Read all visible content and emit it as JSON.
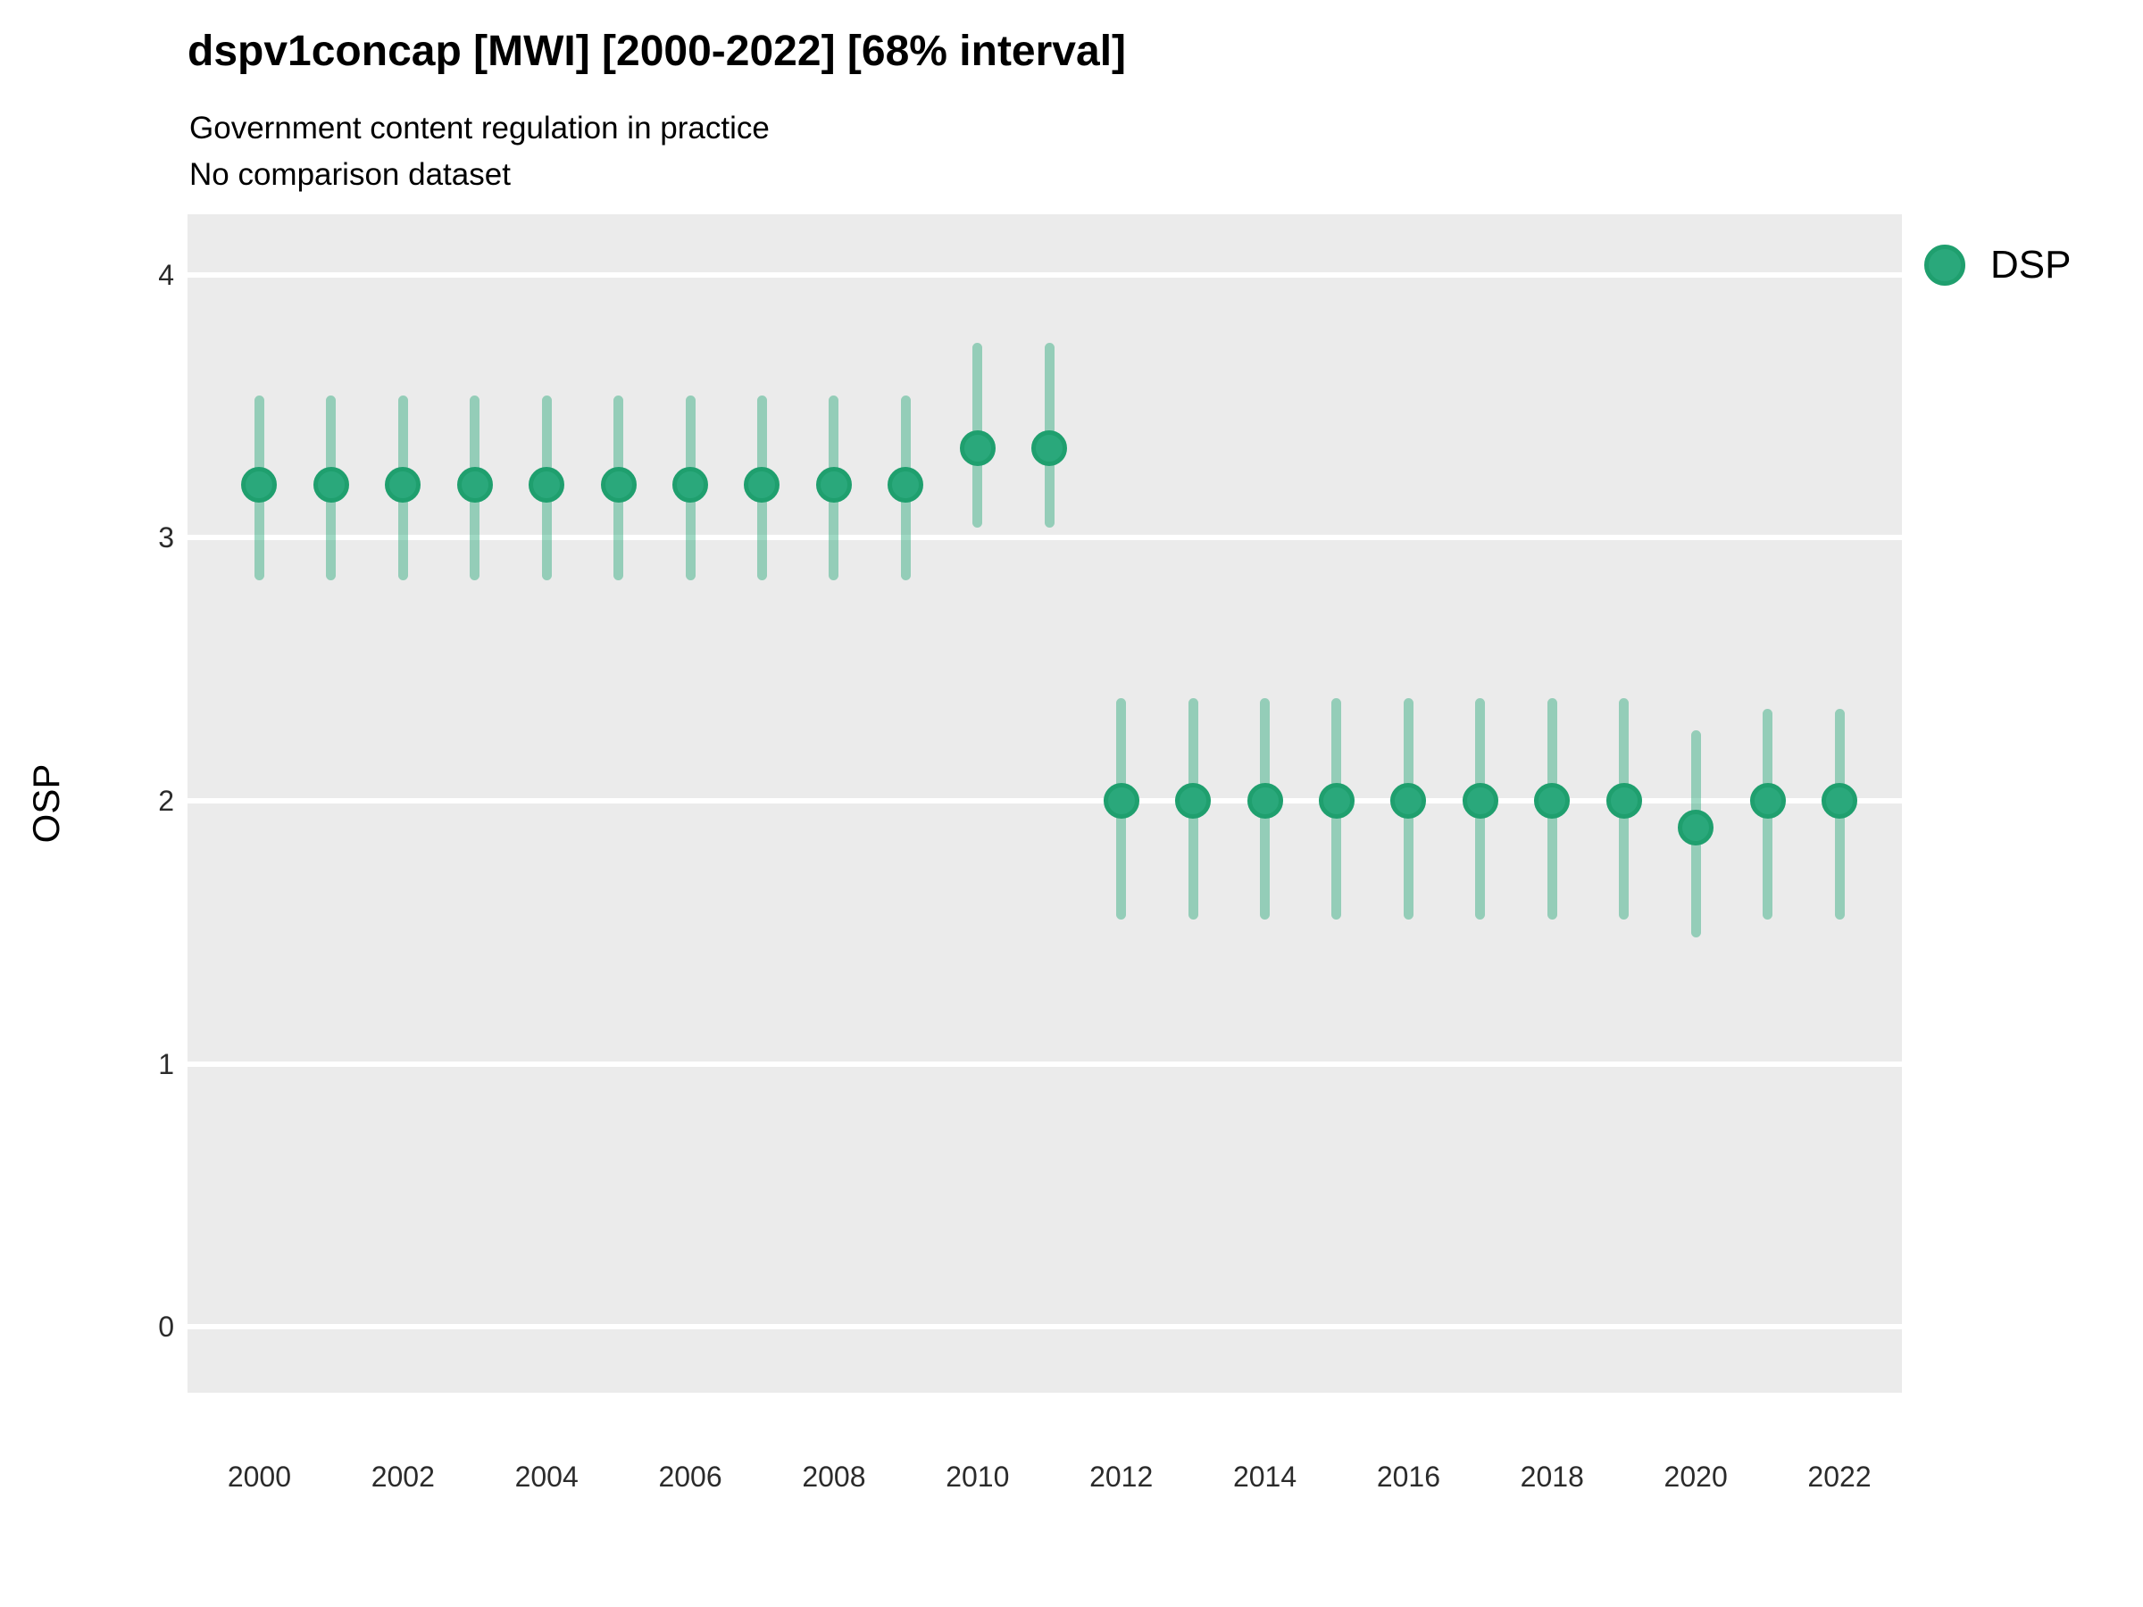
{
  "header": {
    "title": "dspv1concap [MWI] [2000-2022] [68% interval]",
    "subtitle_line1": "Government content regulation in practice",
    "subtitle_line2": "No comparison dataset"
  },
  "legend": {
    "label": "DSP",
    "marker": "circle-icon"
  },
  "colors": {
    "point_fill": "#2aa87b",
    "point_stroke": "#1f9f6e",
    "interval_band": "rgba(42,168,123,0.45)",
    "panel_bg": "#ebebeb",
    "gridline": "#ffffff",
    "tick_text": "#2b2b2b",
    "text": "#000000"
  },
  "chart_data": {
    "type": "scatter",
    "title": "dspv1concap [MWI] [2000-2022] [68% interval]",
    "subtitle": "Government content regulation in practice",
    "note": "No comparison dataset",
    "interval_label": "68% interval",
    "xlabel": "",
    "ylabel": "OSP",
    "legend_position": "right",
    "grid": "major-horizontal-only",
    "xlim": [
      1999.0,
      2022.87
    ],
    "ylim": [
      -0.25,
      4.23
    ],
    "x_ticks": [
      2000,
      2002,
      2004,
      2006,
      2008,
      2010,
      2012,
      2014,
      2016,
      2018,
      2020,
      2022
    ],
    "y_ticks": [
      0,
      1,
      2,
      3,
      4
    ],
    "series": [
      {
        "name": "DSP",
        "x": [
          2000,
          2001,
          2002,
          2003,
          2004,
          2005,
          2006,
          2007,
          2008,
          2009,
          2010,
          2011,
          2012,
          2013,
          2014,
          2015,
          2016,
          2017,
          2018,
          2019,
          2020,
          2021,
          2022
        ],
        "y": [
          3.2,
          3.2,
          3.2,
          3.2,
          3.2,
          3.2,
          3.2,
          3.2,
          3.2,
          3.2,
          3.34,
          3.34,
          2.0,
          2.0,
          2.0,
          2.0,
          2.0,
          2.0,
          2.0,
          2.0,
          1.9,
          2.0,
          2.0
        ],
        "lower": [
          2.84,
          2.84,
          2.84,
          2.84,
          2.84,
          2.84,
          2.84,
          2.84,
          2.84,
          2.84,
          3.04,
          3.04,
          1.55,
          1.55,
          1.55,
          1.55,
          1.55,
          1.55,
          1.55,
          1.55,
          1.48,
          1.55,
          1.55
        ],
        "upper": [
          3.54,
          3.54,
          3.54,
          3.54,
          3.54,
          3.54,
          3.54,
          3.54,
          3.54,
          3.54,
          3.74,
          3.74,
          2.39,
          2.39,
          2.39,
          2.39,
          2.39,
          2.39,
          2.39,
          2.39,
          2.27,
          2.35,
          2.35
        ]
      }
    ]
  }
}
